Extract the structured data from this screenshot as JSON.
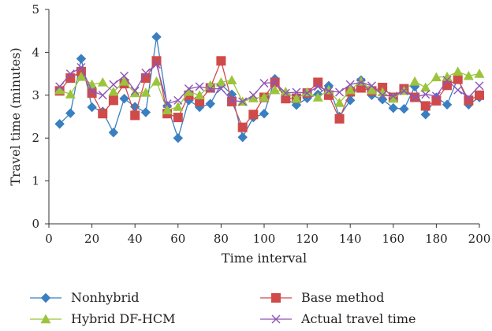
{
  "chart_data": {
    "type": "line",
    "title": "",
    "xlabel": "Time interval",
    "ylabel": "Travel time (minutes)",
    "xlim": [
      0,
      200
    ],
    "ylim": [
      0,
      5
    ],
    "xticks": [
      0,
      20,
      40,
      60,
      80,
      100,
      120,
      140,
      160,
      180,
      200
    ],
    "yticks": [
      0,
      1,
      2,
      3,
      4,
      5
    ],
    "grid": false,
    "legend_position": "bottom",
    "x": [
      5,
      10,
      15,
      20,
      25,
      30,
      35,
      40,
      45,
      50,
      55,
      60,
      65,
      70,
      75,
      80,
      85,
      90,
      95,
      100,
      105,
      110,
      115,
      120,
      125,
      130,
      135,
      140,
      145,
      150,
      155,
      160,
      165,
      170,
      175,
      180,
      185,
      190,
      195,
      200
    ],
    "series": [
      {
        "name": "Nonhybrid",
        "color": "#3a7fc1",
        "marker": "diamond",
        "values": [
          2.33,
          2.58,
          3.85,
          2.72,
          2.62,
          2.13,
          2.92,
          2.73,
          2.6,
          4.36,
          2.75,
          2.0,
          2.88,
          2.72,
          2.8,
          3.25,
          3.02,
          2.02,
          2.48,
          2.57,
          3.38,
          2.92,
          2.77,
          2.93,
          3.02,
          3.22,
          2.5,
          2.88,
          3.35,
          3.0,
          2.9,
          2.7,
          2.68,
          3.2,
          2.55,
          2.95,
          2.78,
          3.4,
          2.78,
          2.95
        ]
      },
      {
        "name": "Base method",
        "color": "#d04a4a",
        "marker": "square",
        "values": [
          3.1,
          3.4,
          3.55,
          3.05,
          2.57,
          2.88,
          3.27,
          2.53,
          3.4,
          3.8,
          2.57,
          2.48,
          3.0,
          2.85,
          3.17,
          3.8,
          2.85,
          2.25,
          2.55,
          2.95,
          3.3,
          2.92,
          2.93,
          3.05,
          3.3,
          3.0,
          2.45,
          3.08,
          3.17,
          3.1,
          3.18,
          2.95,
          3.15,
          2.95,
          2.75,
          2.87,
          3.23,
          3.37,
          2.88,
          3.0
        ]
      },
      {
        "name": "Hybrid DF-HCM",
        "color": "#9bc43c",
        "marker": "triangle",
        "values": [
          3.12,
          3.02,
          3.43,
          3.25,
          3.3,
          3.08,
          3.32,
          3.05,
          3.06,
          3.32,
          2.65,
          2.73,
          3.08,
          3.0,
          3.23,
          3.3,
          3.35,
          2.85,
          2.93,
          2.95,
          3.12,
          3.08,
          2.92,
          3.07,
          2.95,
          3.12,
          2.82,
          3.12,
          3.32,
          3.12,
          3.07,
          2.92,
          3.1,
          3.32,
          3.18,
          3.42,
          3.43,
          3.55,
          3.45,
          3.5
        ]
      },
      {
        "name": "Actual travel time",
        "color": "#8e55b5",
        "marker": "x",
        "values": [
          3.2,
          3.5,
          3.65,
          3.1,
          3.0,
          3.25,
          3.45,
          3.1,
          3.52,
          3.72,
          2.8,
          2.88,
          3.15,
          3.2,
          3.15,
          3.15,
          2.88,
          2.85,
          3.0,
          3.28,
          3.3,
          3.05,
          3.07,
          3.05,
          3.2,
          3.1,
          3.07,
          3.25,
          3.3,
          3.22,
          3.0,
          2.98,
          3.1,
          2.95,
          3.02,
          2.98,
          3.35,
          3.12,
          2.95,
          3.22
        ]
      }
    ]
  }
}
